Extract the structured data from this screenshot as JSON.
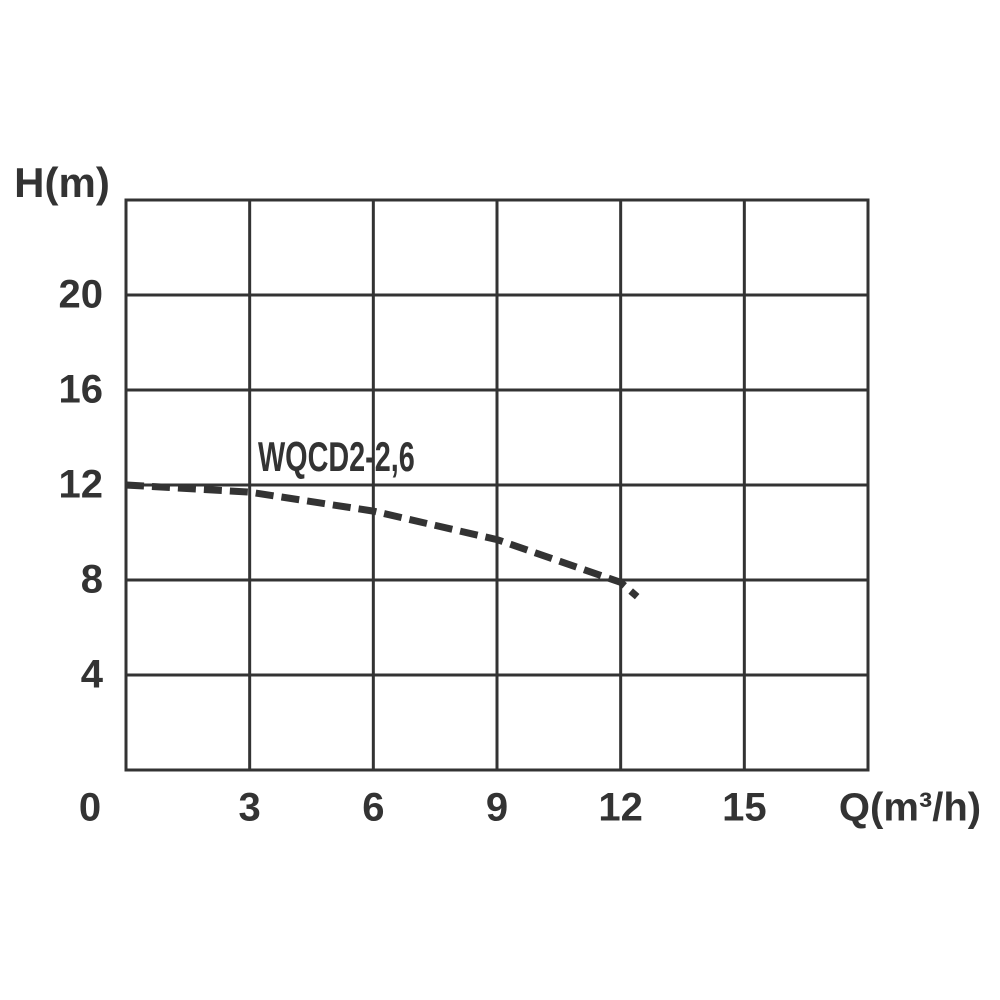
{
  "chart_data": {
    "type": "line",
    "x_label": "Q(m³/h)",
    "y_label": "H(m)",
    "x": [
      0,
      3,
      6,
      9,
      12,
      12.4
    ],
    "series": [
      {
        "name": "WQCD2-2,6",
        "color": "#333333",
        "values": [
          12,
          11.7,
          10.9,
          9.7,
          7.9,
          7.3
        ]
      }
    ],
    "xlim": [
      0,
      18
    ],
    "ylim": [
      0,
      24
    ],
    "xticks": [
      0,
      3,
      6,
      9,
      12,
      15
    ],
    "yticks": [
      4,
      8,
      12,
      16,
      20
    ],
    "grid": true
  }
}
